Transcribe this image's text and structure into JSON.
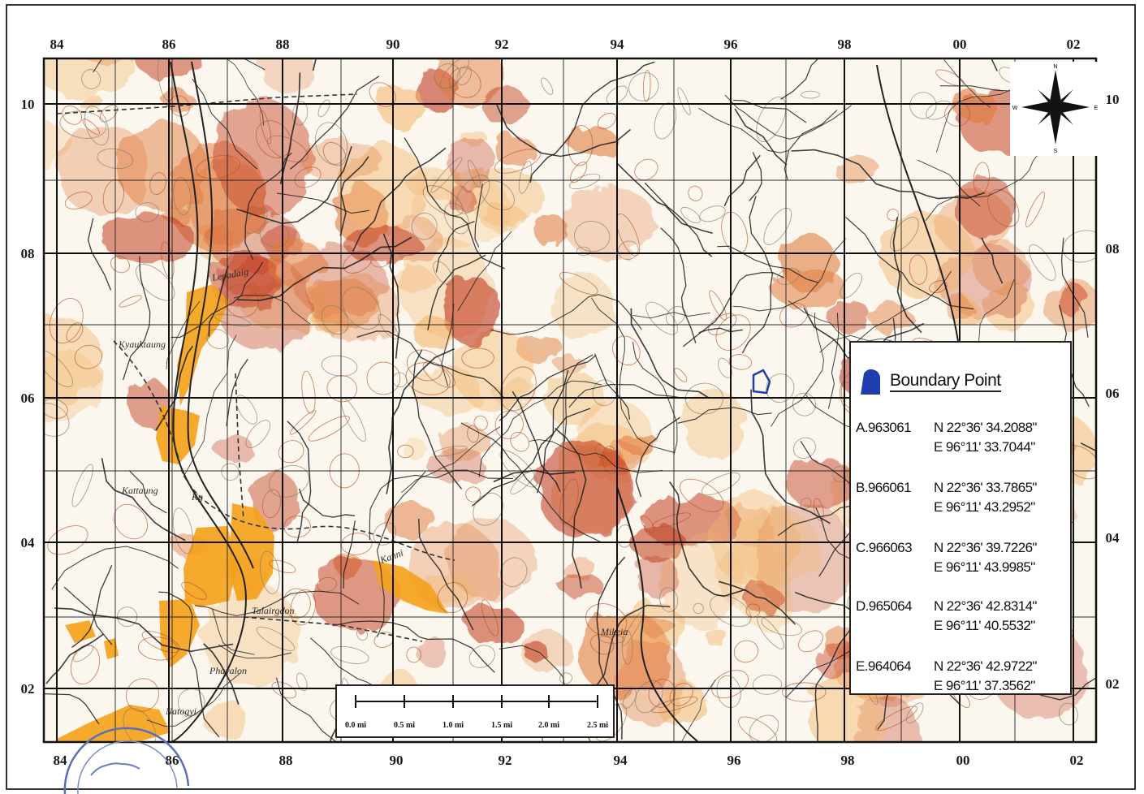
{
  "grid": {
    "top_labels": [
      "84",
      "86",
      "88",
      "90",
      "92",
      "94",
      "96",
      "98",
      "00",
      "02"
    ],
    "bottom_labels": [
      "84",
      "86",
      "88",
      "90",
      "92",
      "94",
      "96",
      "98",
      "00",
      "02"
    ],
    "left_labels": [
      "10",
      "08",
      "06",
      "04",
      "02"
    ],
    "right_labels": [
      "10",
      "08",
      "06",
      "04",
      "02"
    ]
  },
  "places": [
    {
      "name": "Lepadaig"
    },
    {
      "name": "Kyauktaung"
    },
    {
      "name": "Kattaung"
    },
    {
      "name": "Kg"
    },
    {
      "name": "Talairgdon"
    },
    {
      "name": "Phayalon"
    },
    {
      "name": "Natogyi"
    },
    {
      "name": "Kanni"
    },
    {
      "name": "Mikeia"
    }
  ],
  "scale_bar": {
    "labels": [
      "0.0 mi",
      "0.5 mi",
      "1.0 mi",
      "1.5 mi",
      "2.0 mi",
      "2.5 mi"
    ]
  },
  "compass": {
    "letters": [
      "N",
      "S",
      "W",
      "E"
    ]
  },
  "legend": {
    "title": "Boundary Point",
    "swatch_color": "#1f3fb0",
    "points": [
      {
        "id": "A.963061",
        "lat": "N 22°36' 34.2088\"",
        "lon": "E 96°11' 33.7044\""
      },
      {
        "id": "B.966061",
        "lat": "N 22°36' 33.7865\"",
        "lon": "E 96°11' 43.2952\""
      },
      {
        "id": "C.966063",
        "lat": "N 22°36' 39.7226\"",
        "lon": "E 96°11' 43.9985\""
      },
      {
        "id": "D.965064",
        "lat": "N 22°36' 42.8314\"",
        "lon": "E 96°11' 40.5532\""
      },
      {
        "id": "E.964064",
        "lat": "N 22°36' 42.9722\"",
        "lon": "E 96°11' 37.3562\""
      }
    ]
  },
  "colors": {
    "relief_dark": "#c0381a",
    "relief_mid": "#e0783a",
    "relief_light": "#f2b46a",
    "plain": "#f4a21c",
    "boundary": "#1f3fb0"
  }
}
